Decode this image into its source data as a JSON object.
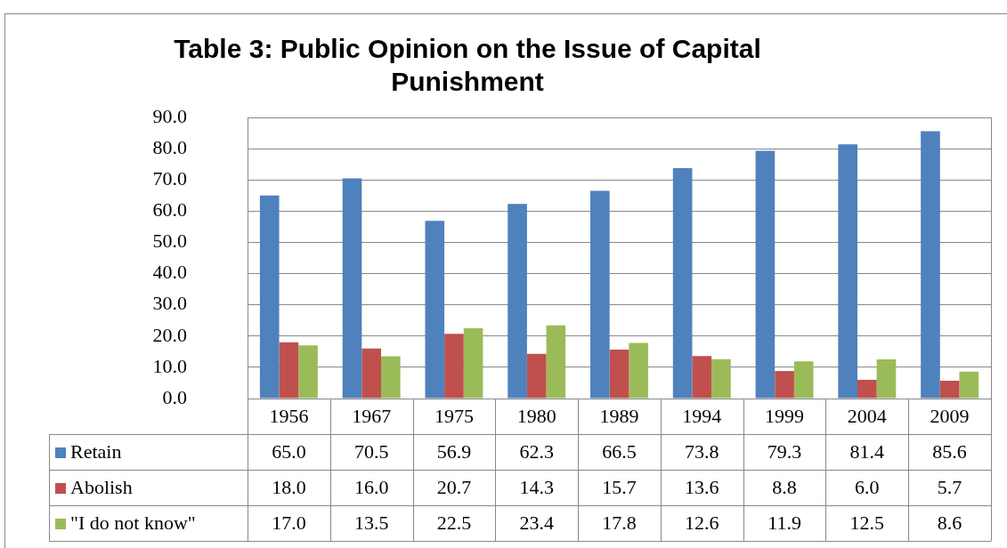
{
  "chart_data": {
    "type": "bar",
    "title": "Table 3: Public Opinion on the Issue of Capital Punishment",
    "categories": [
      "1956",
      "1967",
      "1975",
      "1980",
      "1989",
      "1994",
      "1999",
      "2004",
      "2009"
    ],
    "series": [
      {
        "name": "Retain",
        "color": "#4f81bd",
        "values": [
          65.0,
          70.5,
          56.9,
          62.3,
          66.5,
          73.8,
          79.3,
          81.4,
          85.6
        ],
        "value_labels": [
          "65.0",
          "70.5",
          "56.9",
          "62.3",
          "66.5",
          "73.8",
          "79.3",
          "81.4",
          "85.6"
        ]
      },
      {
        "name": "Abolish",
        "color": "#c0504d",
        "values": [
          18.0,
          16.0,
          20.7,
          14.3,
          15.7,
          13.6,
          8.8,
          6.0,
          5.7
        ],
        "value_labels": [
          "18.0",
          "16.0",
          "20.7",
          "14.3",
          "15.7",
          "13.6",
          "8.8",
          "6.0",
          "5.7"
        ]
      },
      {
        "name": "\"I do not know\"",
        "color": "#9bbb59",
        "values": [
          17.0,
          13.5,
          22.5,
          23.4,
          17.8,
          12.6,
          11.9,
          12.5,
          8.6
        ],
        "value_labels": [
          "17.0",
          "13.5",
          "22.5",
          "23.4",
          "17.8",
          "12.6",
          "11.9",
          "12.5",
          "8.6"
        ]
      }
    ],
    "ylim": [
      0,
      90
    ],
    "yticks": [
      {
        "value": 0,
        "label": "0.0"
      },
      {
        "value": 10,
        "label": "10.0"
      },
      {
        "value": 20,
        "label": "20.0"
      },
      {
        "value": 30,
        "label": "30.0"
      },
      {
        "value": 40,
        "label": "40.0"
      },
      {
        "value": 50,
        "label": "50.0"
      },
      {
        "value": 60,
        "label": "60.0"
      },
      {
        "value": 70,
        "label": "70.0"
      },
      {
        "value": 80,
        "label": "80.0"
      },
      {
        "value": 90,
        "label": "90.0"
      }
    ],
    "grid": "y",
    "legend": "bottom left"
  }
}
